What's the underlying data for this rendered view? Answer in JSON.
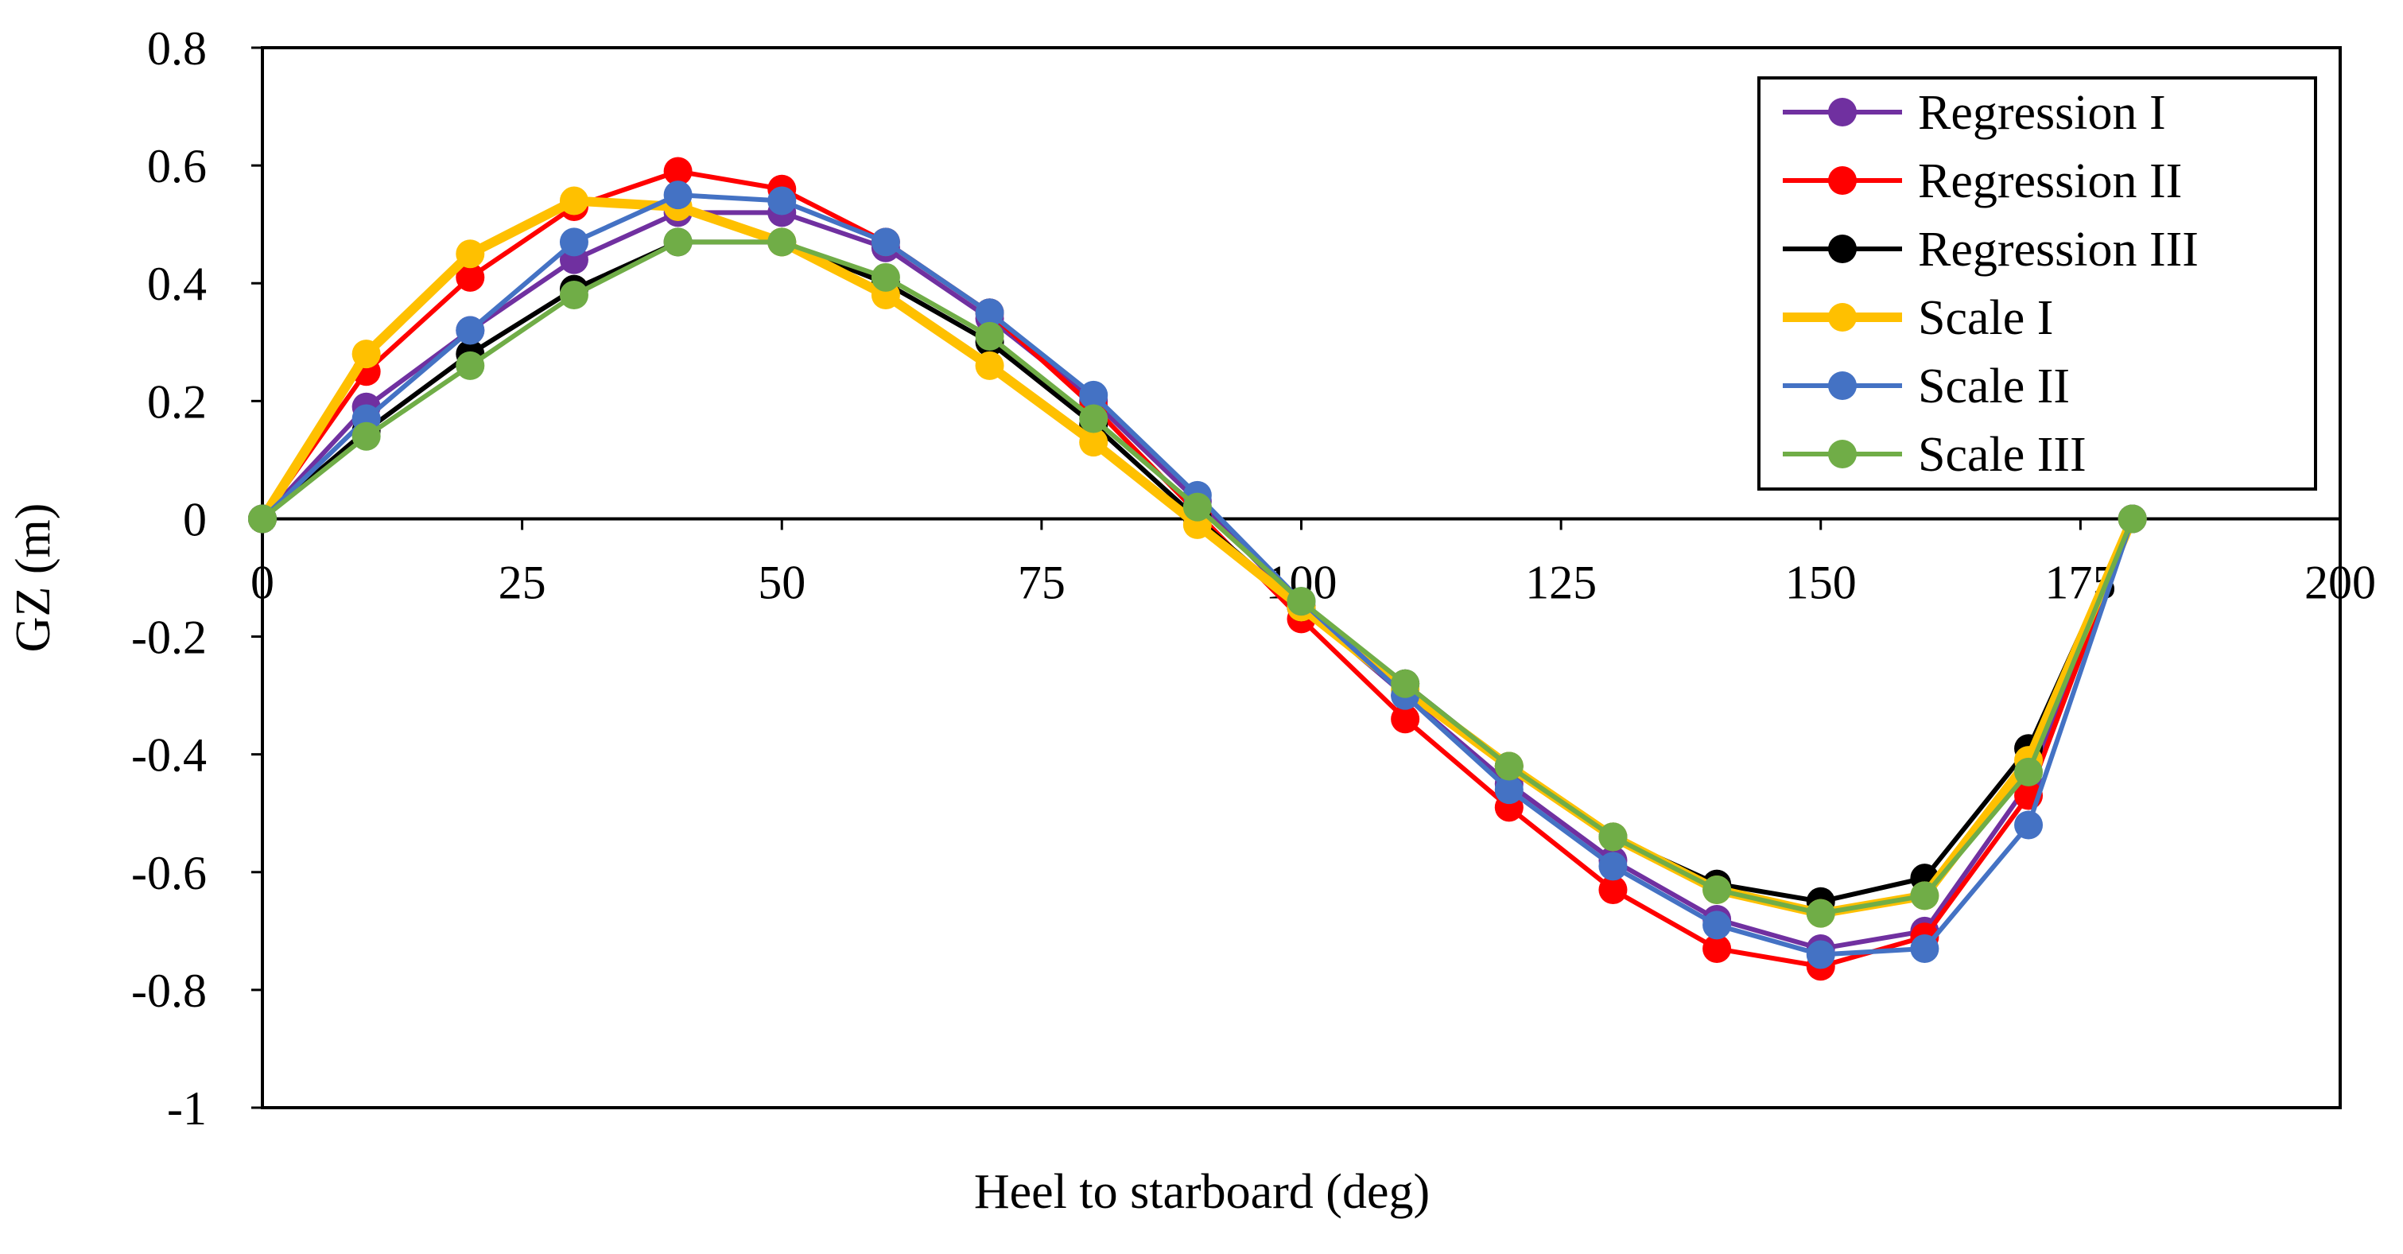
{
  "chart_data": {
    "type": "line",
    "title": "",
    "xlabel": "Heel to starboard (deg)",
    "ylabel": "GZ (m)",
    "xlim": [
      0,
      200
    ],
    "ylim": [
      -1,
      0.8
    ],
    "xticks": [
      0,
      25,
      50,
      75,
      100,
      125,
      150,
      175,
      200
    ],
    "yticks": [
      0.8,
      0.6,
      0.4,
      0.2,
      0,
      -0.2,
      -0.4,
      -0.6,
      -0.8,
      -1
    ],
    "xtick_labels": [
      "0",
      "25",
      "50",
      "75",
      "100",
      "125",
      "150",
      "175",
      "200"
    ],
    "ytick_labels": [
      "0.8",
      "0.6",
      "0.4",
      "0.2",
      "0",
      "-0.2",
      "-0.4",
      "-0.6",
      "-0.8",
      "-1"
    ],
    "grid": false,
    "legend_position": "top-right",
    "x": [
      0,
      10,
      20,
      30,
      40,
      50,
      60,
      70,
      80,
      90,
      100,
      110,
      120,
      130,
      140,
      150,
      160,
      170,
      180
    ],
    "series": [
      {
        "name": "Regression I",
        "color": "#7030a0",
        "values": [
          0,
          0.19,
          0.32,
          0.44,
          0.52,
          0.52,
          0.46,
          0.34,
          0.2,
          0.03,
          -0.15,
          -0.3,
          -0.45,
          -0.58,
          -0.68,
          -0.73,
          -0.7,
          -0.45,
          0
        ]
      },
      {
        "name": "Regression II",
        "color": "#ff0000",
        "values": [
          0,
          0.25,
          0.41,
          0.53,
          0.59,
          0.56,
          0.47,
          0.35,
          0.19,
          0.01,
          -0.17,
          -0.34,
          -0.49,
          -0.63,
          -0.73,
          -0.76,
          -0.71,
          -0.47,
          0
        ]
      },
      {
        "name": "Regression III",
        "color": "#000000",
        "values": [
          0,
          0.15,
          0.28,
          0.39,
          0.47,
          0.47,
          0.4,
          0.3,
          0.16,
          0.0,
          -0.15,
          -0.28,
          -0.42,
          -0.54,
          -0.62,
          -0.65,
          -0.61,
          -0.39,
          0
        ]
      },
      {
        "name": "Scale I",
        "color": "#ffc000",
        "values": [
          0,
          0.28,
          0.45,
          0.54,
          0.53,
          0.47,
          0.38,
          0.26,
          0.13,
          -0.01,
          -0.15,
          -0.29,
          -0.42,
          -0.54,
          -0.63,
          -0.67,
          -0.64,
          -0.41,
          0
        ]
      },
      {
        "name": "Scale II",
        "color": "#4472c4",
        "values": [
          0,
          0.17,
          0.32,
          0.47,
          0.55,
          0.54,
          0.47,
          0.35,
          0.21,
          0.04,
          -0.14,
          -0.3,
          -0.46,
          -0.59,
          -0.69,
          -0.74,
          -0.73,
          -0.52,
          0
        ]
      },
      {
        "name": "Scale III",
        "color": "#70ad47",
        "values": [
          0,
          0.14,
          0.26,
          0.38,
          0.47,
          0.47,
          0.41,
          0.31,
          0.17,
          0.02,
          -0.14,
          -0.28,
          -0.42,
          -0.54,
          -0.63,
          -0.67,
          -0.64,
          -0.43,
          0
        ]
      }
    ]
  }
}
